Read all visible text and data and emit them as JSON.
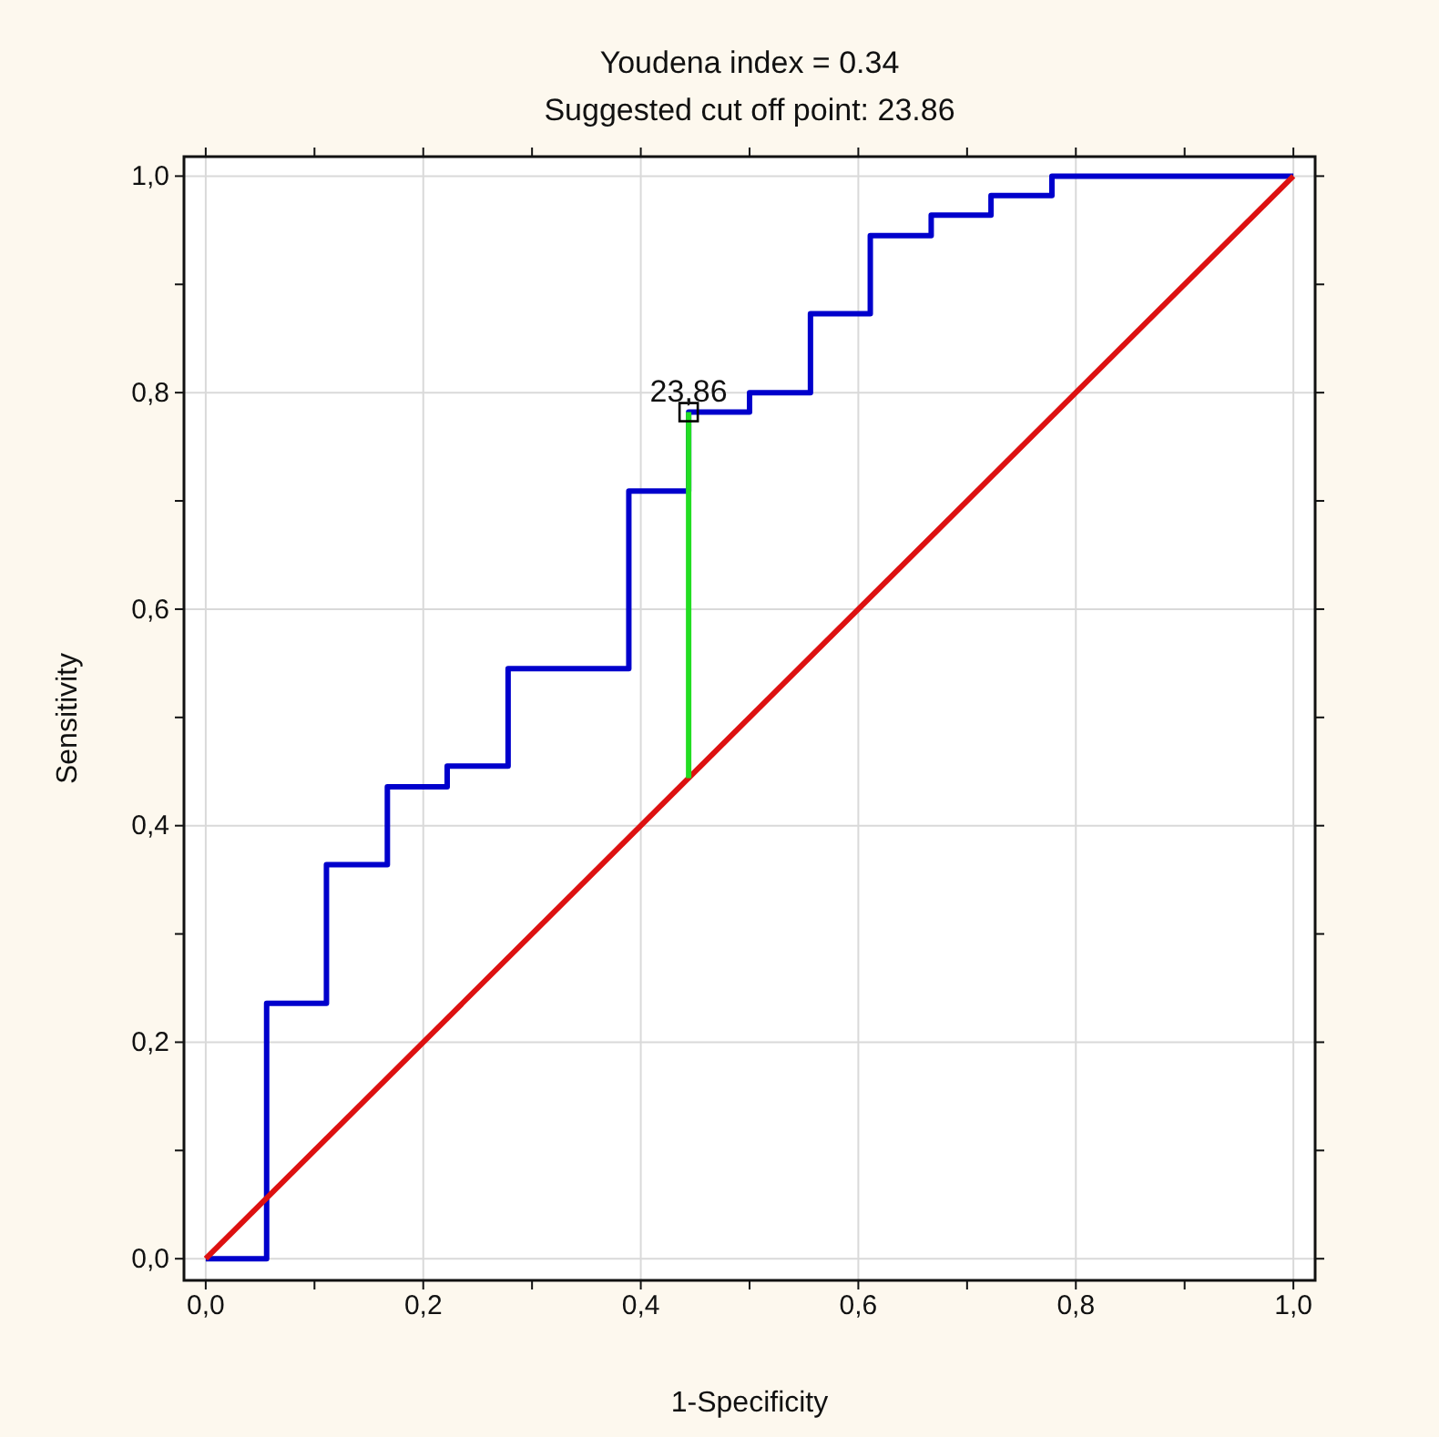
{
  "chart_data": {
    "type": "line",
    "title": "Youdena index  = 0.34",
    "subtitle": "Suggested cut off point: 23.86",
    "xlabel": "1-Specificity",
    "ylabel": "Sensitivity",
    "xlim": [
      -0.02,
      1.02
    ],
    "ylim": [
      -0.02,
      1.018
    ],
    "xticks": [
      {
        "value": 0,
        "label": "0,0"
      },
      {
        "value": 0.1,
        "label": null
      },
      {
        "value": 0.2,
        "label": "0,2"
      },
      {
        "value": 0.3,
        "label": null
      },
      {
        "value": 0.4,
        "label": "0,4"
      },
      {
        "value": 0.5,
        "label": null
      },
      {
        "value": 0.6,
        "label": "0,6"
      },
      {
        "value": 0.7,
        "label": null
      },
      {
        "value": 0.8,
        "label": "0,8"
      },
      {
        "value": 0.9,
        "label": null
      },
      {
        "value": 1,
        "label": "1,0"
      }
    ],
    "yticks": [
      {
        "value": 0,
        "label": "0,0"
      },
      {
        "value": 0.1,
        "label": null
      },
      {
        "value": 0.2,
        "label": "0,2"
      },
      {
        "value": 0.3,
        "label": null
      },
      {
        "value": 0.4,
        "label": "0,4"
      },
      {
        "value": 0.5,
        "label": null
      },
      {
        "value": 0.6,
        "label": "0,6"
      },
      {
        "value": 0.7,
        "label": null
      },
      {
        "value": 0.8,
        "label": "0,8"
      },
      {
        "value": 0.9,
        "label": null
      },
      {
        "value": 1,
        "label": "1,0"
      }
    ],
    "grid": true,
    "line_style": "solid",
    "series": [
      {
        "type": "step",
        "color": "#0000cc",
        "x": [
          0,
          0.056,
          0.111,
          0.167,
          0.222,
          0.278,
          0.389,
          0.444,
          0.5,
          0.556,
          0.611,
          0.667,
          0.722,
          0.778,
          1
        ],
        "values": [
          0,
          0.236,
          0.364,
          0.436,
          0.455,
          0.545,
          0.709,
          0.782,
          0.8,
          0.873,
          0.945,
          0.964,
          0.982,
          1,
          1
        ]
      },
      {
        "color": "#dd1111",
        "x": [
          0,
          1
        ],
        "values": [
          0,
          1
        ]
      },
      {
        "color": "#22dd22",
        "x": [
          0.444,
          0.444
        ],
        "values": [
          0.444,
          0.782
        ]
      },
      {
        "type": "scatter",
        "color": "#000000",
        "marker": "square",
        "x": [
          0.444
        ],
        "values": [
          0.782
        ]
      }
    ],
    "annotations": [
      {
        "text": "23,86",
        "x": 0.444,
        "y": 0.782
      }
    ]
  }
}
